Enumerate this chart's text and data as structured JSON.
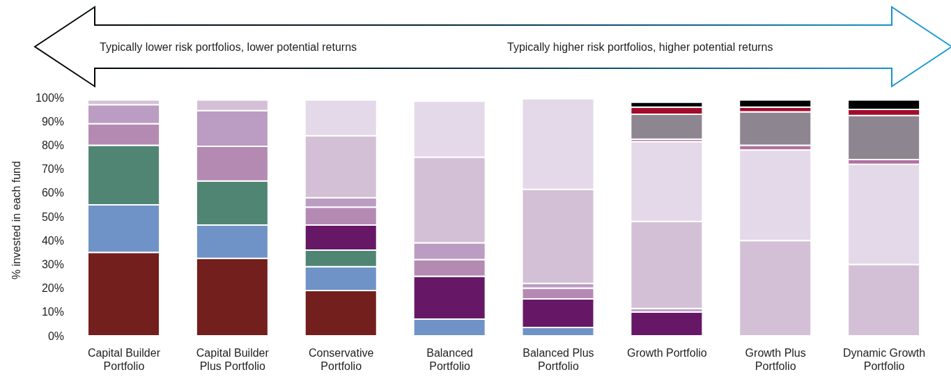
{
  "chart_data": {
    "type": "bar",
    "stacked": true,
    "ylabel": "% invested in each fund",
    "annotations": [
      "Typically lower risk portfolios, lower potential returns",
      "Typically higher risk portfolios, higher potential returns"
    ],
    "categories": [
      "Capital Builder Portfolio",
      "Capital Builder Plus Portfolio",
      "Conservative Portfolio",
      "Balanced Portfolio",
      "Balanced Plus Portfolio",
      "Growth Portfolio",
      "Growth Plus Portfolio",
      "Dynamic Growth Portfolio"
    ],
    "series": [
      {
        "color": "#731f1d",
        "values": [
          35,
          32.5,
          19,
          null,
          null,
          null,
          null,
          null
        ]
      },
      {
        "color": "#6f93c6",
        "values": [
          20,
          14,
          10,
          7,
          3.5,
          null,
          null,
          null
        ]
      },
      {
        "color": "#508574",
        "values": [
          25,
          18.5,
          7,
          null,
          null,
          null,
          null,
          null
        ]
      },
      {
        "color": "#661866",
        "values": [
          null,
          null,
          10.5,
          18,
          12,
          10,
          null,
          null
        ]
      },
      {
        "color": "#b48ab3",
        "values": [
          9,
          14.5,
          7.5,
          7,
          4.5,
          null,
          null,
          null
        ]
      },
      {
        "color": "#bb9cc2",
        "values": [
          8,
          15,
          4,
          7,
          2,
          1.5,
          null,
          null
        ]
      },
      {
        "color": "#d4c0d6",
        "values": [
          2,
          4.5,
          26,
          36,
          39.5,
          36.5,
          40,
          30
        ]
      },
      {
        "color": "#e4d9e8",
        "values": [
          null,
          null,
          15,
          23.5,
          38,
          33.5,
          38,
          42
        ]
      },
      {
        "color": "#b072a0",
        "values": [
          null,
          null,
          null,
          null,
          null,
          1,
          2,
          2
        ]
      },
      {
        "color": "#8d8590",
        "values": [
          null,
          null,
          null,
          null,
          null,
          10.5,
          14,
          18.5
        ]
      },
      {
        "color": "#a30b2c",
        "values": [
          null,
          null,
          null,
          null,
          null,
          3,
          2,
          2.5
        ]
      },
      {
        "color": "#000000",
        "values": [
          null,
          null,
          null,
          null,
          null,
          2,
          3,
          4
        ]
      }
    ],
    "ylim": [
      0,
      100
    ],
    "yticks": [
      {
        "value": 0,
        "label": "0%"
      },
      {
        "value": 10,
        "label": "10%"
      },
      {
        "value": 20,
        "label": "20%"
      },
      {
        "value": 30,
        "label": "30%"
      },
      {
        "value": 40,
        "label": "40%"
      },
      {
        "value": 50,
        "label": "50%"
      },
      {
        "value": 60,
        "label": "60%"
      },
      {
        "value": 70,
        "label": "70%"
      },
      {
        "value": 80,
        "label": "80%"
      },
      {
        "value": 90,
        "label": "90%"
      },
      {
        "value": 100,
        "label": "100%"
      }
    ],
    "grid": false,
    "legend": false
  }
}
